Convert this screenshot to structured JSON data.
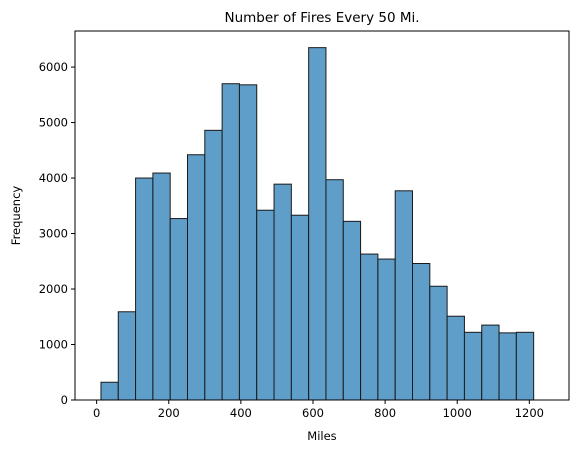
{
  "chart_data": {
    "type": "bar",
    "title": "Number of Fires Every 50 Mi.",
    "xlabel": "Miles",
    "ylabel": "Frequency",
    "xlim": [
      -60,
      1310
    ],
    "ylim": [
      0,
      6650
    ],
    "xticks": [
      0,
      200,
      400,
      600,
      800,
      1000,
      1200
    ],
    "yticks": [
      0,
      1000,
      2000,
      3000,
      4000,
      5000,
      6000
    ],
    "bar_color": "#5f9ec9",
    "edge_color": "#1a1a1a",
    "grid": false,
    "bins": [
      {
        "x0": 12,
        "x1": 60,
        "value": 320
      },
      {
        "x0": 60,
        "x1": 108,
        "value": 1590
      },
      {
        "x0": 108,
        "x1": 156,
        "value": 4000
      },
      {
        "x0": 156,
        "x1": 204,
        "value": 4090
      },
      {
        "x0": 204,
        "x1": 252,
        "value": 3270
      },
      {
        "x0": 252,
        "x1": 300,
        "value": 4420
      },
      {
        "x0": 300,
        "x1": 348,
        "value": 4860
      },
      {
        "x0": 348,
        "x1": 396,
        "value": 5700
      },
      {
        "x0": 396,
        "x1": 444,
        "value": 5680
      },
      {
        "x0": 444,
        "x1": 492,
        "value": 3420
      },
      {
        "x0": 492,
        "x1": 540,
        "value": 3890
      },
      {
        "x0": 540,
        "x1": 588,
        "value": 3330
      },
      {
        "x0": 588,
        "x1": 636,
        "value": 6350
      },
      {
        "x0": 636,
        "x1": 684,
        "value": 3970
      },
      {
        "x0": 684,
        "x1": 732,
        "value": 3220
      },
      {
        "x0": 732,
        "x1": 780,
        "value": 2630
      },
      {
        "x0": 780,
        "x1": 828,
        "value": 2540
      },
      {
        "x0": 828,
        "x1": 876,
        "value": 3770
      },
      {
        "x0": 876,
        "x1": 924,
        "value": 2460
      },
      {
        "x0": 924,
        "x1": 972,
        "value": 2050
      },
      {
        "x0": 972,
        "x1": 1020,
        "value": 1510
      },
      {
        "x0": 1020,
        "x1": 1068,
        "value": 1220
      },
      {
        "x0": 1068,
        "x1": 1116,
        "value": 1350
      },
      {
        "x0": 1116,
        "x1": 1164,
        "value": 1210
      },
      {
        "x0": 1164,
        "x1": 1212,
        "value": 1220
      }
    ]
  }
}
